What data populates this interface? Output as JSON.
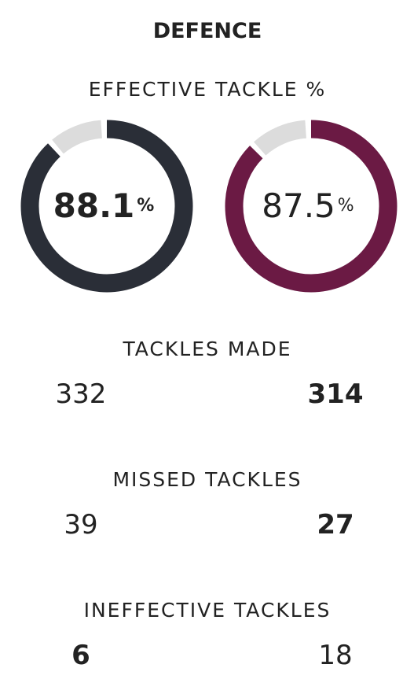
{
  "header": {
    "title": "DEFENCE"
  },
  "effective_tackle": {
    "label": "EFFECTIVE TACKLE %",
    "track_color": "#dcdcdc",
    "teams": [
      {
        "value": 88.1,
        "unit": "%",
        "color": "#2a2e37",
        "bold": true
      },
      {
        "value": 87.5,
        "unit": "%",
        "color": "#6b1a44",
        "bold": false
      }
    ]
  },
  "stats": [
    {
      "label": "TACKLES MADE",
      "values": [
        332,
        314
      ],
      "bold": 1
    },
    {
      "label": "MISSED TACKLES",
      "values": [
        39,
        27
      ],
      "bold": 1
    },
    {
      "label": "INEFFECTIVE TACKLES",
      "values": [
        6,
        18
      ],
      "bold": 0
    }
  ]
}
